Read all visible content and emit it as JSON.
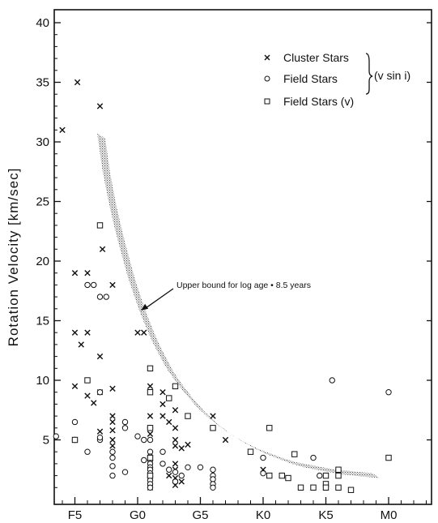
{
  "chart_data": {
    "type": "scatter",
    "title": "",
    "ylabel": "Rotation Velocity [km/sec]",
    "xlabel": "",
    "ylim": [
      0,
      41
    ],
    "yticks": [
      5,
      10,
      15,
      20,
      25,
      30,
      35,
      40
    ],
    "x_spectral_types": [
      "F5",
      "G0",
      "G5",
      "K0",
      "K5",
      "M0"
    ],
    "x_unit_note": "spectral subtype index",
    "x_tick_positions": [
      0,
      5,
      10,
      15,
      20,
      25
    ],
    "xlim": [
      -2,
      31
    ],
    "legend": {
      "placement": "top-right",
      "entries": [
        {
          "marker": "cross",
          "label": "Cluster Stars"
        },
        {
          "marker": "circle",
          "label": "Field Stars"
        },
        {
          "marker": "square",
          "label": "Field Stars (v)"
        }
      ],
      "bracket_label": "(v sin i)"
    },
    "annotation": {
      "text": "Upper bound for log age • 8.5 years",
      "points_to": [
        4.75,
        16.0
      ]
    },
    "upper_bound_band": [
      [
        2.1,
        30.5
      ],
      [
        2.5,
        27.5
      ],
      [
        3,
        24.8
      ],
      [
        3.5,
        22.5
      ],
      [
        4,
        20.5
      ],
      [
        4.5,
        18.6
      ],
      [
        5,
        17.0
      ],
      [
        5.5,
        15.5
      ],
      [
        6,
        14.2
      ],
      [
        6.5,
        13.0
      ],
      [
        7,
        12.0
      ],
      [
        7.5,
        11.0
      ],
      [
        8,
        10.2
      ],
      [
        9,
        8.8
      ],
      [
        10,
        7.6
      ],
      [
        11,
        6.6
      ],
      [
        12,
        5.8
      ],
      [
        13,
        5.1
      ],
      [
        14,
        4.5
      ],
      [
        15,
        4.0
      ],
      [
        16,
        3.6
      ],
      [
        17,
        3.2
      ],
      [
        18,
        2.9
      ],
      [
        19,
        2.7
      ],
      [
        20,
        2.5
      ],
      [
        21,
        2.3
      ],
      [
        22,
        2.2
      ],
      [
        23,
        2.1
      ],
      [
        24,
        2.0
      ]
    ],
    "series": [
      {
        "name": "Cluster Stars",
        "marker": "cross",
        "points": [
          [
            -1,
            31
          ],
          [
            0.2,
            35
          ],
          [
            2,
            33
          ],
          [
            0,
            19
          ],
          [
            1,
            19
          ],
          [
            0,
            14
          ],
          [
            1,
            14
          ],
          [
            0.5,
            13
          ],
          [
            2,
            12
          ],
          [
            0,
            9.5
          ],
          [
            1,
            8.7
          ],
          [
            2,
            9.0
          ],
          [
            3,
            9.3
          ],
          [
            1.5,
            8.1
          ],
          [
            2.2,
            21
          ],
          [
            3,
            18
          ],
          [
            3,
            7
          ],
          [
            3,
            6.5
          ],
          [
            3,
            5.8
          ],
          [
            3,
            5.0
          ],
          [
            3,
            4.5
          ],
          [
            2,
            5.7
          ],
          [
            5,
            14
          ],
          [
            5.5,
            14
          ],
          [
            6,
            9.5
          ],
          [
            6,
            9.0
          ],
          [
            6,
            7.0
          ],
          [
            6,
            5.5
          ],
          [
            7,
            9
          ],
          [
            7,
            8
          ],
          [
            7,
            7
          ],
          [
            7.5,
            6.5
          ],
          [
            8,
            7.5
          ],
          [
            8,
            6.0
          ],
          [
            8,
            5.0
          ],
          [
            8,
            4.5
          ],
          [
            8.5,
            4.3
          ],
          [
            9,
            4.6
          ],
          [
            8,
            3.0
          ],
          [
            8,
            2.5
          ],
          [
            7.5,
            2.0
          ],
          [
            8,
            1.8
          ],
          [
            8.5,
            1.5
          ],
          [
            8,
            1.2
          ],
          [
            6,
            1.0
          ],
          [
            6,
            1.8
          ],
          [
            11,
            7
          ],
          [
            12,
            5
          ],
          [
            15,
            2.5
          ]
        ]
      },
      {
        "name": "Field Stars",
        "marker": "circle",
        "points": [
          [
            -1.5,
            5.3
          ],
          [
            0,
            6.5
          ],
          [
            0,
            5.0
          ],
          [
            1,
            4.0
          ],
          [
            1,
            18
          ],
          [
            1.5,
            18
          ],
          [
            2,
            17
          ],
          [
            2.5,
            17
          ],
          [
            2,
            9.0
          ],
          [
            2,
            5.0
          ],
          [
            2,
            5.2
          ],
          [
            3,
            4.0
          ],
          [
            3,
            3.5
          ],
          [
            3,
            2.8
          ],
          [
            3,
            2.0
          ],
          [
            4,
            6.5
          ],
          [
            4,
            6.0
          ],
          [
            4,
            2.3
          ],
          [
            5,
            5.3
          ],
          [
            5.5,
            5.0
          ],
          [
            6,
            6.0
          ],
          [
            6,
            5.0
          ],
          [
            6,
            4.0
          ],
          [
            6,
            3.6
          ],
          [
            6,
            3.3
          ],
          [
            6,
            3.0
          ],
          [
            6,
            2.7
          ],
          [
            6,
            2.5
          ],
          [
            6,
            2.2
          ],
          [
            6,
            1.9
          ],
          [
            6,
            1.6
          ],
          [
            6,
            1.3
          ],
          [
            6,
            1.0
          ],
          [
            5.5,
            3.3
          ],
          [
            7,
            4.0
          ],
          [
            7,
            3.0
          ],
          [
            7.5,
            2.5
          ],
          [
            8,
            2.3
          ],
          [
            8.5,
            2.0
          ],
          [
            8,
            1.5
          ],
          [
            9,
            2.7
          ],
          [
            10,
            2.7
          ],
          [
            11,
            2.5
          ],
          [
            11,
            2.0
          ],
          [
            11,
            1.7
          ],
          [
            11,
            1.3
          ],
          [
            11,
            1.0
          ],
          [
            15,
            2.2
          ],
          [
            15,
            3.5
          ],
          [
            19,
            3.5
          ],
          [
            19.5,
            2.0
          ],
          [
            20.5,
            10
          ],
          [
            25,
            9
          ]
        ]
      },
      {
        "name": "Field Stars (v)",
        "marker": "square",
        "points": [
          [
            0,
            5.0
          ],
          [
            1,
            10
          ],
          [
            2,
            23
          ],
          [
            6,
            11
          ],
          [
            6,
            9.0
          ],
          [
            6,
            6.0
          ],
          [
            6,
            3.5
          ],
          [
            6,
            2.0
          ],
          [
            7.5,
            8.5
          ],
          [
            8,
            9.5
          ],
          [
            9,
            7.0
          ],
          [
            11,
            6.0
          ],
          [
            14,
            4.0
          ],
          [
            15.5,
            6.0
          ],
          [
            15.5,
            2.0
          ],
          [
            16.5,
            2.0
          ],
          [
            17,
            1.8
          ],
          [
            17.5,
            3.8
          ],
          [
            18,
            1.0
          ],
          [
            19,
            1.0
          ],
          [
            20,
            2.0
          ],
          [
            20,
            1.3
          ],
          [
            20,
            1.0
          ],
          [
            21,
            2.5
          ],
          [
            21,
            2.0
          ],
          [
            21,
            1.0
          ],
          [
            22,
            0.8
          ],
          [
            25,
            3.5
          ]
        ]
      }
    ]
  }
}
